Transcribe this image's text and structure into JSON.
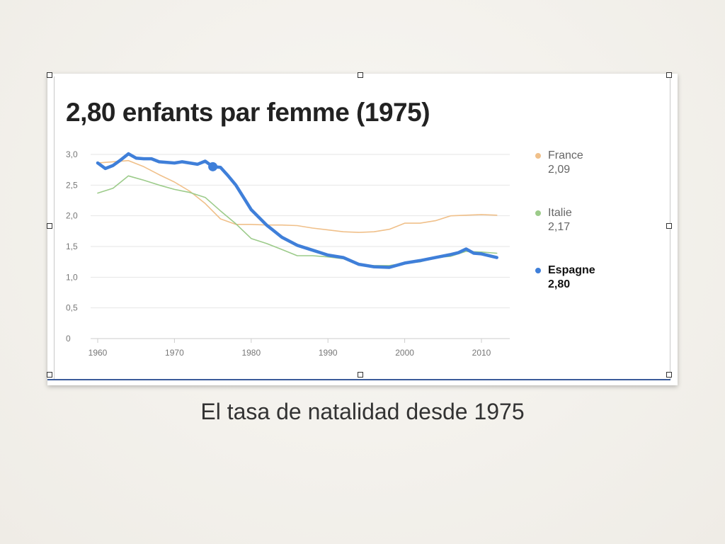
{
  "slide": {
    "caption": "El tasa de natalidad desde 1975"
  },
  "chart_data": {
    "type": "line",
    "title": "2,80 enfants par femme (1975)",
    "xlabel": "",
    "ylabel": "",
    "xlim": [
      1959,
      2013
    ],
    "ylim": [
      0,
      3.0
    ],
    "grid": true,
    "legend_position": "right",
    "x_ticks": [
      "1960",
      "1970",
      "1980",
      "1990",
      "2000",
      "2010"
    ],
    "y_ticks": [
      "3,0",
      "2,5",
      "2,0",
      "1,5",
      "1,0",
      "0,5",
      "0"
    ],
    "highlight": {
      "series": "Espagne",
      "x": 1975,
      "y": 2.8
    },
    "series": [
      {
        "name": "France",
        "legend_value": "2,09",
        "color": "#f0c08a",
        "x": [
          1960,
          1962,
          1964,
          1966,
          1968,
          1970,
          1972,
          1974,
          1976,
          1978,
          1980,
          1982,
          1984,
          1986,
          1988,
          1990,
          1992,
          1994,
          1996,
          1998,
          2000,
          2002,
          2004,
          2006,
          2008,
          2010,
          2012
        ],
        "y": [
          2.86,
          2.88,
          2.9,
          2.8,
          2.67,
          2.55,
          2.4,
          2.2,
          1.95,
          1.86,
          1.86,
          1.85,
          1.85,
          1.84,
          1.8,
          1.77,
          1.74,
          1.73,
          1.74,
          1.78,
          1.88,
          1.88,
          1.92,
          2.0,
          2.01,
          2.02,
          2.01
        ]
      },
      {
        "name": "Italie",
        "legend_value": "2,17",
        "color": "#9ccb8a",
        "x": [
          1960,
          1962,
          1964,
          1966,
          1968,
          1970,
          1972,
          1974,
          1976,
          1978,
          1980,
          1982,
          1984,
          1986,
          1988,
          1990,
          1992,
          1994,
          1996,
          1998,
          2000,
          2002,
          2004,
          2006,
          2008,
          2010,
          2012
        ],
        "y": [
          2.37,
          2.45,
          2.65,
          2.58,
          2.5,
          2.43,
          2.38,
          2.3,
          2.08,
          1.87,
          1.63,
          1.55,
          1.45,
          1.35,
          1.35,
          1.33,
          1.3,
          1.2,
          1.19,
          1.19,
          1.23,
          1.25,
          1.32,
          1.34,
          1.42,
          1.41,
          1.39
        ]
      },
      {
        "name": "Espagne",
        "legend_value": "2,80",
        "color": "#3f7fd9",
        "x": [
          1960,
          1961,
          1962,
          1963,
          1964,
          1965,
          1966,
          1967,
          1968,
          1969,
          1970,
          1971,
          1972,
          1973,
          1974,
          1975,
          1976,
          1977,
          1978,
          1979,
          1980,
          1982,
          1984,
          1986,
          1988,
          1990,
          1992,
          1994,
          1996,
          1998,
          2000,
          2002,
          2004,
          2006,
          2007,
          2008,
          2009,
          2010,
          2012
        ],
        "y": [
          2.86,
          2.77,
          2.82,
          2.91,
          3.01,
          2.94,
          2.93,
          2.93,
          2.88,
          2.87,
          2.86,
          2.88,
          2.86,
          2.84,
          2.89,
          2.8,
          2.79,
          2.65,
          2.5,
          2.3,
          2.1,
          1.85,
          1.65,
          1.52,
          1.44,
          1.36,
          1.32,
          1.21,
          1.17,
          1.16,
          1.23,
          1.27,
          1.32,
          1.37,
          1.4,
          1.46,
          1.39,
          1.38,
          1.32
        ]
      }
    ]
  }
}
